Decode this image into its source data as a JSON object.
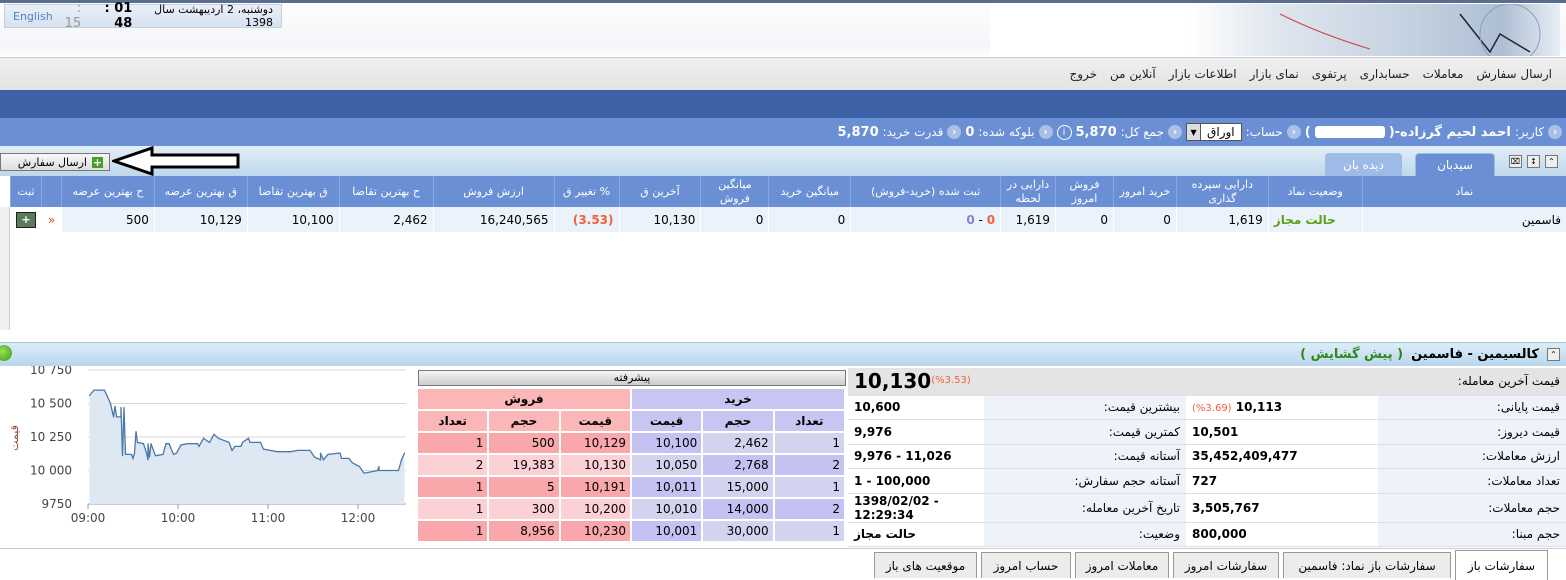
{
  "header": {
    "date": "دوشنبه، 2 اردیبهشت سال 1398",
    "time_hm": "01 : 48",
    "time_s": ": 15",
    "language_link": "English"
  },
  "menu": [
    "ارسال سفارش",
    "معاملات",
    "حسابداری",
    "پرتفوی",
    "نمای بازار",
    "اطلاعات بازار",
    "آنلاین من",
    "خروج"
  ],
  "userbar": {
    "user_label": "کاربر:",
    "user_name": "احمد لحیم گرزاده-(",
    "user_suffix": ")",
    "account_label": "حساب:",
    "account_value": "اوراق",
    "total_label": "جمع کل:",
    "total_value": "5,870",
    "blocked_label": "بلوکه شده:",
    "blocked_value": "0",
    "buying_power_label": "قدرت خرید:",
    "buying_power_value": "5,870"
  },
  "toolbar": {
    "send_order": "ارسال سفارش",
    "tabs": [
      "سیدبان",
      "دیده بان"
    ]
  },
  "grid": {
    "columns": [
      "ثبت",
      "",
      "ح بهترین عرضه",
      "ق بهترین عرضه",
      "ق بهترین تقاضا",
      "ح بهترین تقاضا",
      "ارزش فروش",
      "تغییر ق %",
      "آخرین ق",
      "میانگین فروش",
      "میانگین خرید",
      "ثبت شده (خرید-فروش)",
      "دارایی در لحظه",
      "فروش امروز",
      "خرید امروز",
      "دارایی سپرده گذاری",
      "وضعیت نماد",
      "نماد"
    ],
    "row": {
      "best_ask_vol": "500",
      "best_ask_price": "10,129",
      "best_bid_price": "10,100",
      "best_bid_vol": "2,462",
      "sell_value": "16,240,565",
      "change_pct": "(3.53)",
      "last_price": "10,130",
      "avg_sell": "0",
      "avg_buy": "0",
      "registered_buy": "0",
      "registered_sep": " - ",
      "registered_sell": "0",
      "asset_now": "1,619",
      "sell_today": "0",
      "buy_today": "0",
      "deposit_asset": "1,619",
      "status": "حالت مجاز",
      "symbol": "فاسمین"
    }
  },
  "panel": {
    "title": "کالسیمین - فاسمین",
    "state": "( پیش گشایش )"
  },
  "chart_data": {
    "type": "area",
    "xlabel": "",
    "ylabel": "قیمت",
    "ylim": [
      9750,
      10750
    ],
    "yticks": [
      "9750",
      "10 000",
      "10 250",
      "10 500",
      "10 750"
    ],
    "xticks": [
      "09:00",
      "10:00",
      "11:00",
      "12:00"
    ],
    "grid": true,
    "x": [
      "09:01",
      "09:04",
      "09:11",
      "09:15",
      "09:17",
      "09:18",
      "09:19",
      "09:22",
      "09:22",
      "09:23",
      "09:24",
      "09:25",
      "09:29",
      "09:30",
      "09:31",
      "09:32",
      "09:33",
      "09:37",
      "09:39",
      "09:40",
      "09:40",
      "09:41",
      "09:42",
      "09:45",
      "09:50",
      "09:52",
      "09:54",
      "09:57",
      "09:59",
      "10:02",
      "10:06",
      "10:13",
      "10:14",
      "10:17",
      "10:21",
      "10:24",
      "10:27",
      "10:34",
      "10:36",
      "10:38",
      "10:42",
      "10:43",
      "10:47",
      "10:48",
      "10:55",
      "10:57",
      "11:06",
      "11:15",
      "11:20",
      "11:28",
      "11:31",
      "11:35",
      "11:35",
      "11:37",
      "11:40",
      "11:48",
      "11:49",
      "11:54",
      "11:56",
      "11:59",
      "12:01",
      "12:04",
      "12:13",
      "12:14",
      "12:14",
      "12:27",
      "12:29",
      "12:31"
    ],
    "y": [
      10560,
      10600,
      10600,
      10500,
      10400,
      10480,
      10400,
      10400,
      10470,
      10110,
      10470,
      10120,
      10120,
      10090,
      10130,
      10290,
      10210,
      10200,
      10130,
      10080,
      10200,
      10100,
      10200,
      10110,
      10120,
      10200,
      10200,
      10120,
      10130,
      10190,
      10200,
      10200,
      10180,
      10240,
      10210,
      10270,
      10240,
      10210,
      10150,
      10180,
      10180,
      10210,
      10240,
      10210,
      10210,
      10160,
      10140,
      10140,
      10150,
      10150,
      10100,
      10080,
      10130,
      10080,
      10120,
      10130,
      10090,
      10090,
      10060,
      10040,
      10030,
      9980,
      10000,
      10030,
      10000,
      10000,
      10080,
      10130
    ]
  },
  "orderbook": {
    "advanced": "پیشرفته",
    "sell_title": "فروش",
    "buy_title": "خرید",
    "sell_cols": [
      "تعداد",
      "حجم",
      "قیمت"
    ],
    "buy_cols": [
      "قیمت",
      "حجم",
      "تعداد"
    ],
    "rows": [
      {
        "s_count": "1",
        "s_vol": "500",
        "s_price": "10,129",
        "b_price": "10,100",
        "b_vol": "2,462",
        "b_count": "1"
      },
      {
        "s_count": "2",
        "s_vol": "19,383",
        "s_price": "10,130",
        "b_price": "10,050",
        "b_vol": "2,768",
        "b_count": "2"
      },
      {
        "s_count": "1",
        "s_vol": "5",
        "s_price": "10,191",
        "b_price": "10,011",
        "b_vol": "15,000",
        "b_count": "1"
      },
      {
        "s_count": "1",
        "s_vol": "300",
        "s_price": "10,200",
        "b_price": "10,010",
        "b_vol": "14,000",
        "b_count": "2"
      },
      {
        "s_count": "1",
        "s_vol": "8,956",
        "s_price": "10,230",
        "b_price": "10,001",
        "b_vol": "30,000",
        "b_count": "1"
      }
    ]
  },
  "info": {
    "last_label": "قیمت آخرین معامله:",
    "last_value": "10,130",
    "last_pct": "(%3.53)",
    "rows": [
      {
        "l1": "قیمت پایانی:",
        "v1": "10,113",
        "p1": "(%3.69)",
        "l2": "بیشترین قیمت:",
        "v2": "10,600"
      },
      {
        "l1": "قیمت دیروز:",
        "v1": "10,501",
        "l2": "کمترین قیمت:",
        "v2": "9,976"
      },
      {
        "l1": "ارزش معاملات:",
        "v1": "35,452,409,477",
        "l2": "آستانه قیمت:",
        "v2": "9,976 - 11,026"
      },
      {
        "l1": "تعداد معاملات:",
        "v1": "727",
        "l2": "آستانه حجم سفارش:",
        "v2": "1 - 100,000"
      },
      {
        "l1": "حجم معاملات:",
        "v1": "3,505,767",
        "l2": "تاریخ آخرین معامله:",
        "v2": "1398/02/02 - 12:29:34"
      },
      {
        "l1": "حجم مبنا:",
        "v1": "800,000",
        "l2": "وضعیت:",
        "v2": "حالت مجاز"
      }
    ]
  },
  "bottom_tabs": [
    "سفارشات باز",
    "سفارشات باز نماد: فاسمین",
    "سفارشات امروز",
    "معاملات امروز",
    "حساب امروز",
    "موقعیت های باز"
  ],
  "colors": {
    "header_blue": "#6a8fd5",
    "band_blue": "#3e62a8",
    "sell_pink": "#f9a7aa",
    "buy_lavender": "#c3c2f2",
    "negative": "#f4603a",
    "status_green": "#2d8a1a"
  }
}
